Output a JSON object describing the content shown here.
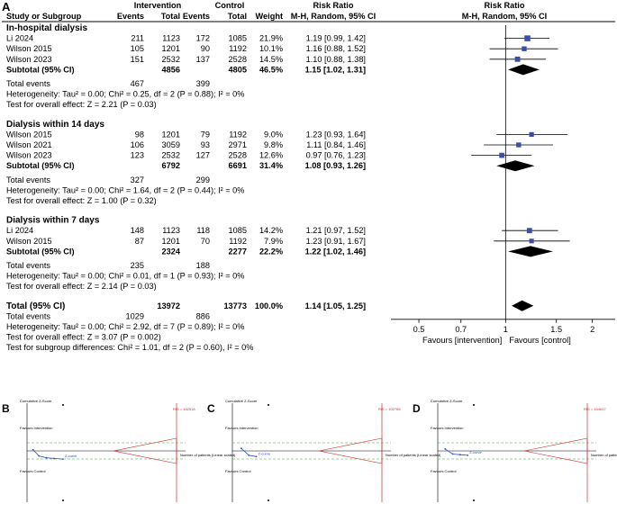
{
  "panel_labels": {
    "a": "A",
    "b": "B",
    "c": "C",
    "d": "D"
  },
  "header": {
    "study": "Study or Subgroup",
    "intervention": "Intervention",
    "control": "Control",
    "events": "Events",
    "total": "Total",
    "weight": "Weight",
    "rr_title": "Risk Ratio",
    "rr_method": "M-H, Random, 95% CI"
  },
  "colors": {
    "square": "#3a4ea8",
    "diamond": "#000000",
    "ci": "#000000",
    "tsa_red": "#d42a2a",
    "tsa_green": "#3aa040",
    "tsa_blue": "#2a4ec0"
  },
  "chart_data": {
    "type": "forest",
    "scale": "log",
    "xlim": [
      0.4,
      2.4
    ],
    "ticks": [
      "0.5",
      "0.7",
      "1",
      "1.5",
      "2"
    ],
    "tick_values": [
      0.5,
      0.7,
      1,
      1.5,
      2
    ],
    "favours_left": "Favours [intervention]",
    "favours_right": "Favours [control]",
    "subgroups": [
      {
        "title": "In-hospital dialysis",
        "studies": [
          {
            "name": "Li 2024",
            "e1": "211",
            "n1": "1123",
            "e2": "172",
            "n2": "1085",
            "weight": "21.9%",
            "ci_text": "1.19 [0.99, 1.42]",
            "rr": 1.19,
            "lo": 0.99,
            "hi": 1.42,
            "w": 21.9
          },
          {
            "name": "Wilson 2015",
            "e1": "105",
            "n1": "1201",
            "e2": "90",
            "n2": "1192",
            "weight": "10.1%",
            "ci_text": "1.16 [0.88, 1.52]",
            "rr": 1.16,
            "lo": 0.88,
            "hi": 1.52,
            "w": 10.1
          },
          {
            "name": "Wilson 2023",
            "e1": "151",
            "n1": "2532",
            "e2": "137",
            "n2": "2528",
            "weight": "14.5%",
            "ci_text": "1.10 [0.88, 1.38]",
            "rr": 1.1,
            "lo": 0.88,
            "hi": 1.38,
            "w": 14.5
          }
        ],
        "subtotal": {
          "label": "Subtotal (95% CI)",
          "n1": "4856",
          "n2": "4805",
          "weight": "46.5%",
          "ci_text": "1.15 [1.02, 1.31]",
          "rr": 1.15,
          "lo": 1.02,
          "hi": 1.31
        },
        "total_events": {
          "label": "Total events",
          "e1": "467",
          "e2": "399"
        },
        "heterogeneity": "Heterogeneity: Tau² = 0.00; Chi² = 0.25, df = 2 (P = 0.88); I² = 0%",
        "overall_test": "Test for overall effect: Z = 2.21 (P = 0.03)"
      },
      {
        "title": "Dialysis within 14 days",
        "studies": [
          {
            "name": "Wilson 2015",
            "e1": "98",
            "n1": "1201",
            "e2": "79",
            "n2": "1192",
            "weight": "9.0%",
            "ci_text": "1.23 [0.93, 1.64]",
            "rr": 1.23,
            "lo": 0.93,
            "hi": 1.64,
            "w": 9.0
          },
          {
            "name": "Wilson 2021",
            "e1": "106",
            "n1": "3059",
            "e2": "93",
            "n2": "2971",
            "weight": "9.8%",
            "ci_text": "1.11 [0.84, 1.46]",
            "rr": 1.11,
            "lo": 0.84,
            "hi": 1.46,
            "w": 9.8
          },
          {
            "name": "Wilson 2023",
            "e1": "123",
            "n1": "2532",
            "e2": "127",
            "n2": "2528",
            "weight": "12.6%",
            "ci_text": "0.97 [0.76, 1.23]",
            "rr": 0.97,
            "lo": 0.76,
            "hi": 1.23,
            "w": 12.6
          }
        ],
        "subtotal": {
          "label": "Subtotal (95% CI)",
          "n1": "6792",
          "n2": "6691",
          "weight": "31.4%",
          "ci_text": "1.08 [0.93, 1.26]",
          "rr": 1.08,
          "lo": 0.93,
          "hi": 1.26
        },
        "total_events": {
          "label": "Total events",
          "e1": "327",
          "e2": "299"
        },
        "heterogeneity": "Heterogeneity: Tau² = 0.00; Chi² = 1.64, df = 2 (P = 0.44); I² = 0%",
        "overall_test": "Test for overall effect: Z = 1.00 (P = 0.32)"
      },
      {
        "title": "Dialysis within 7 days",
        "studies": [
          {
            "name": "Li 2024",
            "e1": "148",
            "n1": "1123",
            "e2": "118",
            "n2": "1085",
            "weight": "14.2%",
            "ci_text": "1.21 [0.97, 1.52]",
            "rr": 1.21,
            "lo": 0.97,
            "hi": 1.52,
            "w": 14.2
          },
          {
            "name": "Wilson 2015",
            "e1": "87",
            "n1": "1201",
            "e2": "70",
            "n2": "1192",
            "weight": "7.9%",
            "ci_text": "1.23 [0.91, 1.67]",
            "rr": 1.23,
            "lo": 0.91,
            "hi": 1.67,
            "w": 7.9
          }
        ],
        "subtotal": {
          "label": "Subtotal (95% CI)",
          "n1": "2324",
          "n2": "2277",
          "weight": "22.2%",
          "ci_text": "1.22 [1.02, 1.46]",
          "rr": 1.22,
          "lo": 1.02,
          "hi": 1.46
        },
        "total_events": {
          "label": "Total events",
          "e1": "235",
          "e2": "188"
        },
        "heterogeneity": "Heterogeneity: Tau² = 0.00; Chi² = 0.01, df = 1 (P = 0.93); I² = 0%",
        "overall_test": "Test for overall effect: Z = 2.14 (P = 0.03)"
      }
    ],
    "total": {
      "label": "Total (95% CI)",
      "n1": "13972",
      "n2": "13773",
      "weight": "100.0%",
      "ci_text": "1.14 [1.05, 1.25]",
      "rr": 1.14,
      "lo": 1.05,
      "hi": 1.25,
      "total_events": {
        "label": "Total events",
        "e1": "1029",
        "e2": "886"
      },
      "heterogeneity": "Heterogeneity: Tau² = 0.00; Chi² = 2.92, df = 7 (P = 0.89); I² = 0%",
      "overall_test": "Test for overall effect: Z = 3.07 (P = 0.002)",
      "subgroup_test": "Test for subgroup differences: Chi² = 1.01, df = 2 (P = 0.60), I² = 0%"
    }
  },
  "tsa": {
    "y_title": "Cumulative Z-Score",
    "favours_int": "Favours Intervention",
    "favours_ctrl": "Favours Control",
    "x_label": "Number of patients (Linear scaled)",
    "panels": [
      {
        "id": "B",
        "ris": "RIS = 162518",
        "z_label": "Z-curve",
        "points": [
          [
            0.04,
            0.2
          ],
          [
            0.08,
            -0.8
          ],
          [
            0.13,
            -1.1
          ],
          [
            0.18,
            -1.2
          ],
          [
            0.24,
            -1.3
          ]
        ]
      },
      {
        "id": "C",
        "ris": "RIS = 102785",
        "z_label": "Z-curve",
        "points": [
          [
            0.06,
            0.4
          ],
          [
            0.11,
            -0.7
          ],
          [
            0.16,
            -0.9
          ]
        ]
      },
      {
        "id": "D",
        "ris": "RIS = 164637",
        "z_label": "Z-curve",
        "points": [
          [
            0.05,
            0.3
          ],
          [
            0.1,
            -0.5
          ],
          [
            0.15,
            -0.6
          ],
          [
            0.2,
            -0.7
          ]
        ]
      }
    ]
  }
}
